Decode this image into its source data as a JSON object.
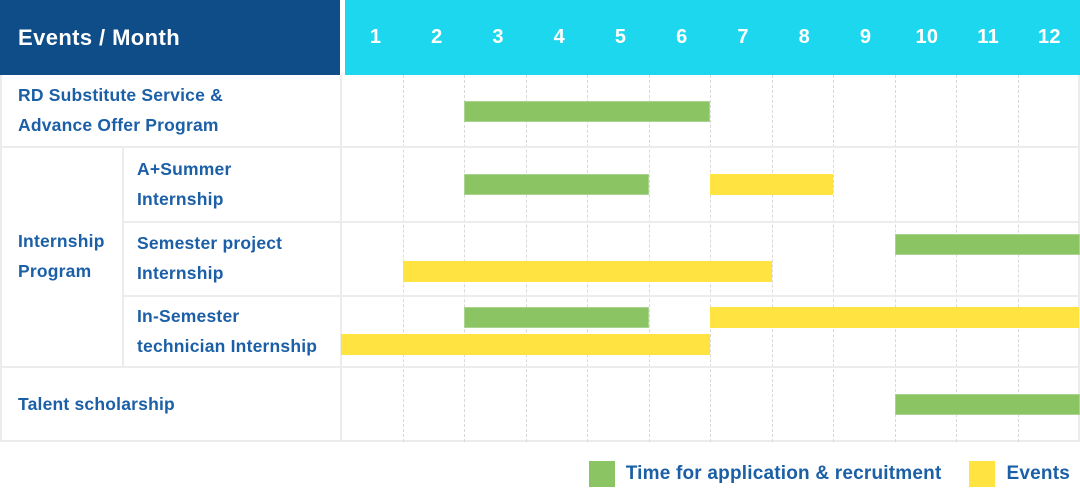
{
  "table": {
    "header": {
      "title": "Events / Month",
      "months": [
        "1",
        "2",
        "3",
        "4",
        "5",
        "6",
        "7",
        "8",
        "9",
        "10",
        "11",
        "12"
      ]
    },
    "group_label": "Internship\nProgram",
    "rows": [
      {
        "label": "RD Substitute Service &\nAdvance Offer Program"
      },
      {
        "label": "A+Summer\nInternship"
      },
      {
        "label": "Semester project\nInternship"
      },
      {
        "label": "In-Semester\ntechnician Internship"
      },
      {
        "label": "Talent scholarship"
      }
    ]
  },
  "legend": {
    "items": [
      {
        "key": "application",
        "label": "Time for application & recruitment"
      },
      {
        "key": "event",
        "label": "Events"
      }
    ]
  },
  "colors": {
    "header_navy": "#0E4D87",
    "header_cyan": "#1CD7EE",
    "bar_green": "#8BC462",
    "bar_green_border": "#A9D38E",
    "bar_yellow": "#FFE441",
    "text_blue": "#1B5FA6",
    "grid_line": "#ECECEC",
    "grid_dash": "#D8D8D8"
  },
  "chart_data": {
    "type": "bar",
    "variant": "gantt",
    "title": "",
    "xlabel": "Month",
    "x_ticks": [
      "1",
      "2",
      "3",
      "4",
      "5",
      "6",
      "7",
      "8",
      "9",
      "10",
      "11",
      "12"
    ],
    "x_range": [
      1,
      13
    ],
    "legend_position": "bottom-right",
    "grid": "dashed-vertical-month-lines",
    "rows": [
      {
        "group": null,
        "label": "RD Substitute Service & Advance Offer Program",
        "bars": [
          {
            "kind": "application",
            "start": 3,
            "end": 7,
            "lane": "center"
          }
        ]
      },
      {
        "group": "Internship Program",
        "label": "A+Summer Internship",
        "bars": [
          {
            "kind": "application",
            "start": 3,
            "end": 6,
            "lane": "center"
          },
          {
            "kind": "event",
            "start": 7,
            "end": 9,
            "lane": "center"
          }
        ]
      },
      {
        "group": "Internship Program",
        "label": "Semester project Internship",
        "bars": [
          {
            "kind": "application",
            "start": 10,
            "end": 13,
            "lane": "top"
          },
          {
            "kind": "event",
            "start": 2,
            "end": 8,
            "lane": "bottom"
          }
        ]
      },
      {
        "group": "Internship Program",
        "label": "In-Semester technician Internship",
        "bars": [
          {
            "kind": "application",
            "start": 3,
            "end": 6,
            "lane": "top"
          },
          {
            "kind": "event",
            "start": 7,
            "end": 13,
            "lane": "top"
          },
          {
            "kind": "event",
            "start": 1,
            "end": 7,
            "lane": "bottom"
          }
        ]
      },
      {
        "group": null,
        "label": "Talent scholarship",
        "bars": [
          {
            "kind": "application",
            "start": 10,
            "end": 13,
            "lane": "center"
          }
        ]
      }
    ]
  }
}
